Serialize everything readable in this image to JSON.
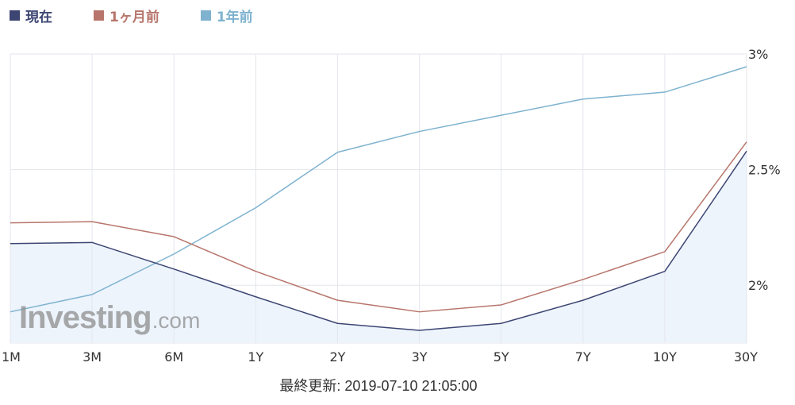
{
  "chart_data": {
    "type": "line",
    "categories": [
      "1M",
      "3M",
      "6M",
      "1Y",
      "2Y",
      "3Y",
      "5Y",
      "7Y",
      "10Y",
      "30Y"
    ],
    "series": [
      {
        "name": "現在",
        "color": "#3d4673",
        "fill": "#edf4fc",
        "values": [
          2.18,
          2.185,
          2.07,
          1.95,
          1.835,
          1.805,
          1.835,
          1.935,
          2.06,
          2.58
        ]
      },
      {
        "name": "1ヶ月前",
        "color": "#b7756b",
        "values": [
          2.27,
          2.275,
          2.21,
          2.06,
          1.935,
          1.885,
          1.915,
          2.025,
          2.145,
          2.62
        ]
      },
      {
        "name": "1年前",
        "color": "#7eb2cf",
        "values": [
          1.885,
          1.96,
          2.135,
          2.335,
          2.575,
          2.665,
          2.735,
          2.805,
          2.835,
          2.945
        ]
      }
    ],
    "ylim": [
      1.75,
      3.0
    ],
    "y_ticks": [
      2.0,
      2.5,
      3.0
    ],
    "y_tick_labels": [
      "2%",
      "2.5%",
      "3%"
    ],
    "y_axis_position": "right",
    "grid": true,
    "legend_position": "top-left"
  },
  "watermark": {
    "main": "Investing",
    "suffix": ".com"
  },
  "footer": {
    "last_updated": "最終更新: 2019-07-10 21:05:00"
  }
}
